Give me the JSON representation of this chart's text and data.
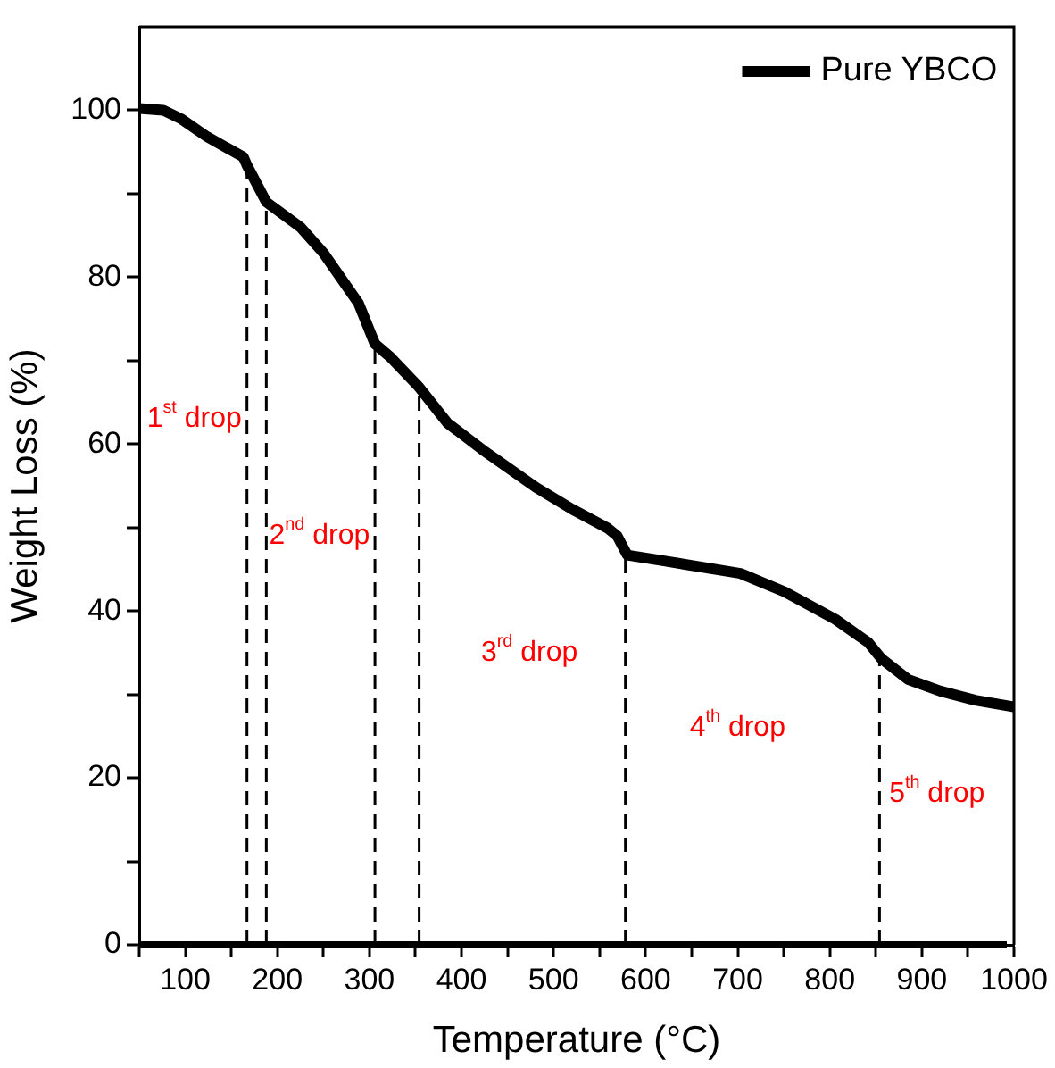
{
  "chart_data": {
    "type": "line",
    "xlabel": "Temperature (°C)",
    "ylabel": "Weight Loss (%)",
    "xlim": [
      50,
      1000
    ],
    "ylim": [
      0,
      110
    ],
    "xticks": [
      {
        "value": 50,
        "label": null
      },
      100,
      {
        "value": 150,
        "label": null
      },
      200,
      {
        "value": 250,
        "label": null
      },
      300,
      {
        "value": 350,
        "label": null
      },
      400,
      {
        "value": 450,
        "label": null
      },
      500,
      {
        "value": 550,
        "label": null
      },
      600,
      {
        "value": 650,
        "label": null
      },
      700,
      {
        "value": 750,
        "label": null
      },
      800,
      {
        "value": 850,
        "label": null
      },
      900,
      {
        "value": 950,
        "label": null
      },
      1000
    ],
    "yticks": [
      0,
      {
        "value": 10,
        "label": null
      },
      20,
      {
        "value": 30,
        "label": null
      },
      40,
      {
        "value": 50,
        "label": null
      },
      60,
      {
        "value": 70,
        "label": null
      },
      80,
      {
        "value": 90,
        "label": null
      },
      100
    ],
    "series": [
      {
        "name": "Pure YBCO",
        "color": "#000000",
        "x": [
          50,
          76,
          95,
          124,
          163,
          167,
          188,
          225,
          250,
          288,
          306,
          323,
          354,
          385,
          423,
          481,
          520,
          559,
          569,
          580,
          620,
          703,
          751,
          806,
          842,
          856,
          885,
          920,
          958,
          1000
        ],
        "values": [
          100.2,
          100,
          99,
          96.8,
          94.4,
          93.4,
          89,
          86,
          82.9,
          76.9,
          72,
          70.4,
          66.8,
          62.5,
          59.3,
          54.8,
          52.2,
          49.9,
          49,
          46.7,
          46,
          44.5,
          42.3,
          39,
          36.2,
          34.3,
          31.8,
          30.4,
          29.3,
          28.5
        ]
      }
    ],
    "ref_lines": [
      {
        "axis": "x",
        "value": 167,
        "color": "#000000",
        "line_style": "dashed"
      },
      {
        "axis": "x",
        "value": 188,
        "color": "#000000",
        "line_style": "dashed"
      },
      {
        "axis": "x",
        "value": 306,
        "color": "#000000",
        "line_style": "dashed"
      },
      {
        "axis": "x",
        "value": 354,
        "color": "#000000",
        "line_style": "dashed"
      },
      {
        "axis": "x",
        "value": 578,
        "color": "#000000",
        "line_style": "dashed"
      },
      {
        "axis": "x",
        "value": 854,
        "color": "#000000",
        "line_style": "dashed"
      },
      {
        "axis": "y",
        "value": 0,
        "color": "#000000",
        "line_style": "solid"
      }
    ],
    "annotations": [
      "1$^{st}$ drop",
      "2$^{nd}$ drop",
      "3$^{rd}$ drop",
      "4$^{th}$ drop",
      "5$^{th}$ drop"
    ],
    "legend": "top right",
    "marker": "none",
    "line_style": "solid",
    "grid": false
  }
}
